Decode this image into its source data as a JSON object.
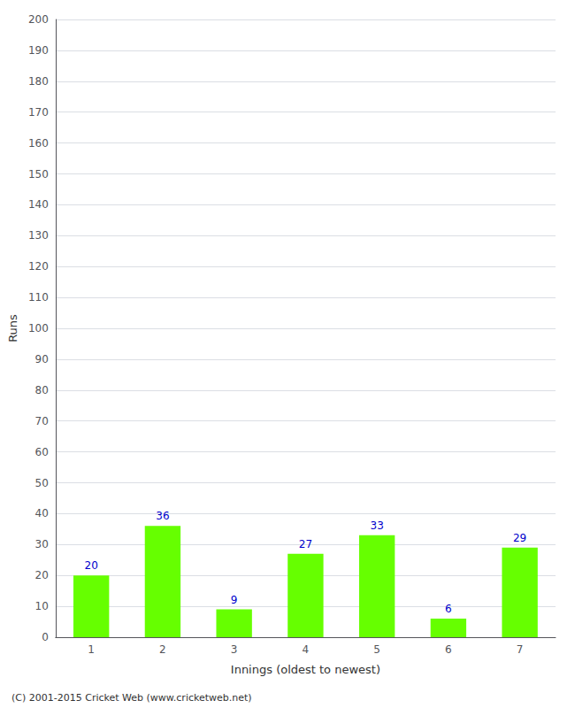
{
  "chart_data": {
    "type": "bar",
    "categories": [
      "1",
      "2",
      "3",
      "4",
      "5",
      "6",
      "7"
    ],
    "values": [
      20,
      36,
      9,
      27,
      33,
      6,
      29
    ],
    "color": "#66ff00",
    "xlabel": "Innings (oldest to newest)",
    "ylabel": "Runs",
    "ylim": [
      0,
      200
    ],
    "yticks": [
      0,
      10,
      20,
      30,
      40,
      50,
      60,
      70,
      80,
      90,
      100,
      110,
      120,
      130,
      140,
      150,
      160,
      170,
      180,
      190,
      200
    ],
    "grid": true,
    "data_labels": true,
    "annotation": "(C) 2001-2015 Cricket Web (www.cricketweb.net)"
  }
}
